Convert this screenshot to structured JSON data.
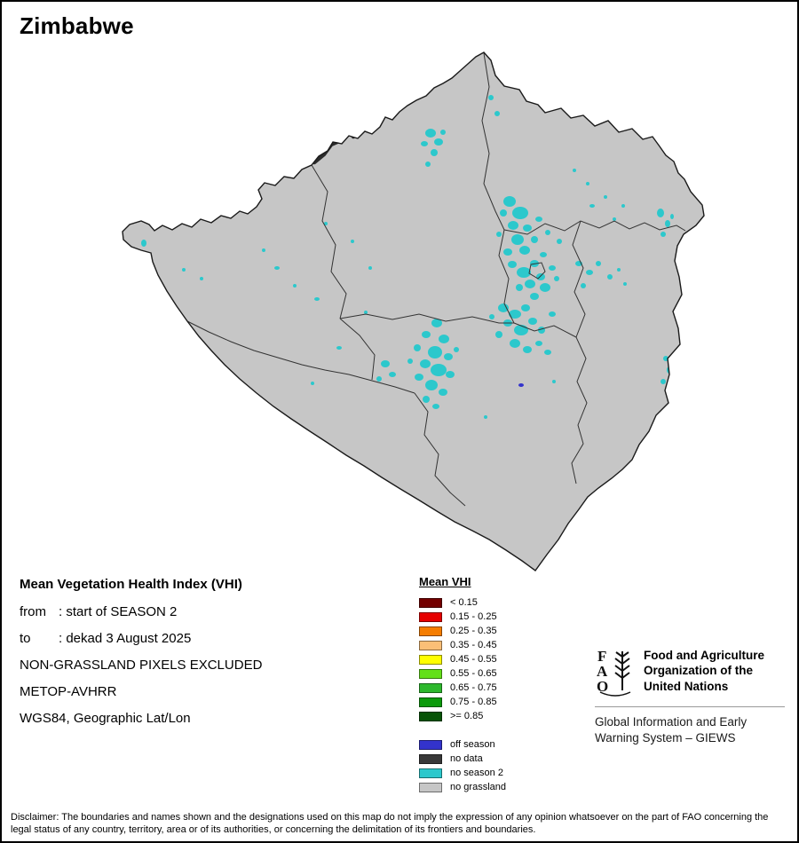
{
  "page": {
    "title": "Zimbabwe"
  },
  "info": {
    "heading": "Mean Vegetation Health Index (VHI)",
    "rows": [
      {
        "label": "from",
        "sep": ":",
        "value": "start of SEASON 2"
      },
      {
        "label": "to",
        "sep": ":",
        "value": "dekad 3 August 2025"
      }
    ],
    "lines": [
      "NON-GRASSLAND PIXELS EXCLUDED",
      "METOP-AVHRR",
      "WGS84, Geographic Lat/Lon"
    ]
  },
  "legend": {
    "title": "Mean VHI",
    "classes": [
      {
        "label": "< 0.15",
        "color": "#730000"
      },
      {
        "label": "0.15 - 0.25",
        "color": "#e60000"
      },
      {
        "label": "0.25 - 0.35",
        "color": "#f57d00"
      },
      {
        "label": "0.35 - 0.45",
        "color": "#fbbf77"
      },
      {
        "label": "0.45 - 0.55",
        "color": "#ffff00"
      },
      {
        "label": "0.55 - 0.65",
        "color": "#63e018"
      },
      {
        "label": "0.65 - 0.75",
        "color": "#2db82d"
      },
      {
        "label": "0.75 - 0.85",
        "color": "#0c9a0c"
      },
      {
        "label": ">= 0.85",
        "color": "#075407"
      }
    ],
    "extras": [
      {
        "label": "off season",
        "color": "#3333cc"
      },
      {
        "label": "no data",
        "color": "#383838"
      },
      {
        "label": "no season 2",
        "color": "#2cc8cc"
      },
      {
        "label": "no grassland",
        "color": "#c6c6c6"
      }
    ]
  },
  "fao": {
    "logo_letters": "FAO",
    "org_lines": [
      "Food and Agriculture",
      "Organization of the",
      "United Nations"
    ],
    "giews_lines": [
      "Global Information and Early",
      "Warning System – GIEWS"
    ]
  },
  "disclaimer": "Disclaimer: The boundaries and names shown and the designations used on this map do not imply the expression of any opinion whatsoever on the part of FAO concerning the legal status of any country, territory, area or of its authorities, or concerning the delimitation of its frontiers and boundaries."
}
